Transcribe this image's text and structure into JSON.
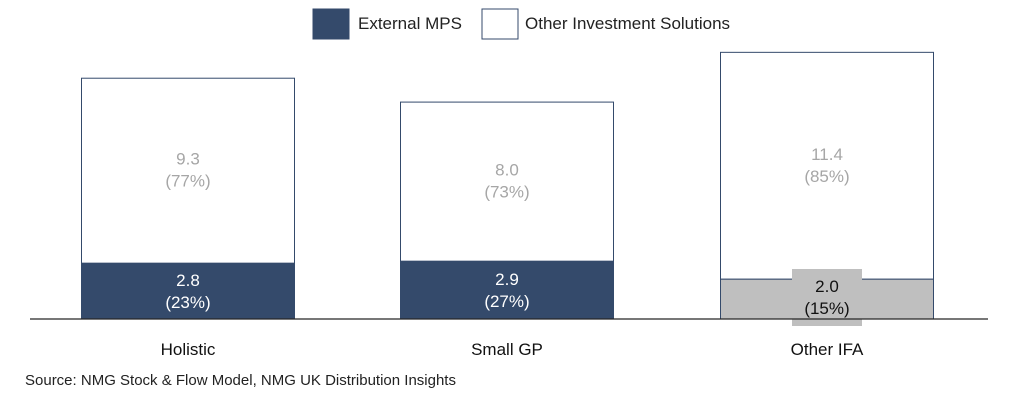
{
  "chart_data": {
    "type": "bar",
    "stacked": true,
    "categories": [
      "Holistic",
      "Small GP",
      "Other IFA"
    ],
    "series": [
      {
        "name": "External MPS",
        "values": [
          2.8,
          2.9,
          2.0
        ],
        "percent_labels": [
          "(23%)",
          "(27%)",
          "(15%)"
        ],
        "value_labels": [
          "2.8",
          "2.9",
          "2.0"
        ],
        "colors": [
          "#344a6b",
          "#344a6b",
          "#bfbfbf"
        ]
      },
      {
        "name": "Other Investment Solutions",
        "values": [
          9.3,
          8.0,
          11.4
        ],
        "percent_labels": [
          "(77%)",
          "(73%)",
          "(85%)"
        ],
        "value_labels": [
          "9.3",
          "8.0",
          "11.4"
        ],
        "colors": [
          "#ffffff",
          "#ffffff",
          "#ffffff"
        ]
      }
    ],
    "legend_position": "top-center",
    "grid": false,
    "ylim": [
      0,
      14
    ]
  },
  "source": "Source: NMG Stock & Flow Model, NMG UK Distribution Insights"
}
